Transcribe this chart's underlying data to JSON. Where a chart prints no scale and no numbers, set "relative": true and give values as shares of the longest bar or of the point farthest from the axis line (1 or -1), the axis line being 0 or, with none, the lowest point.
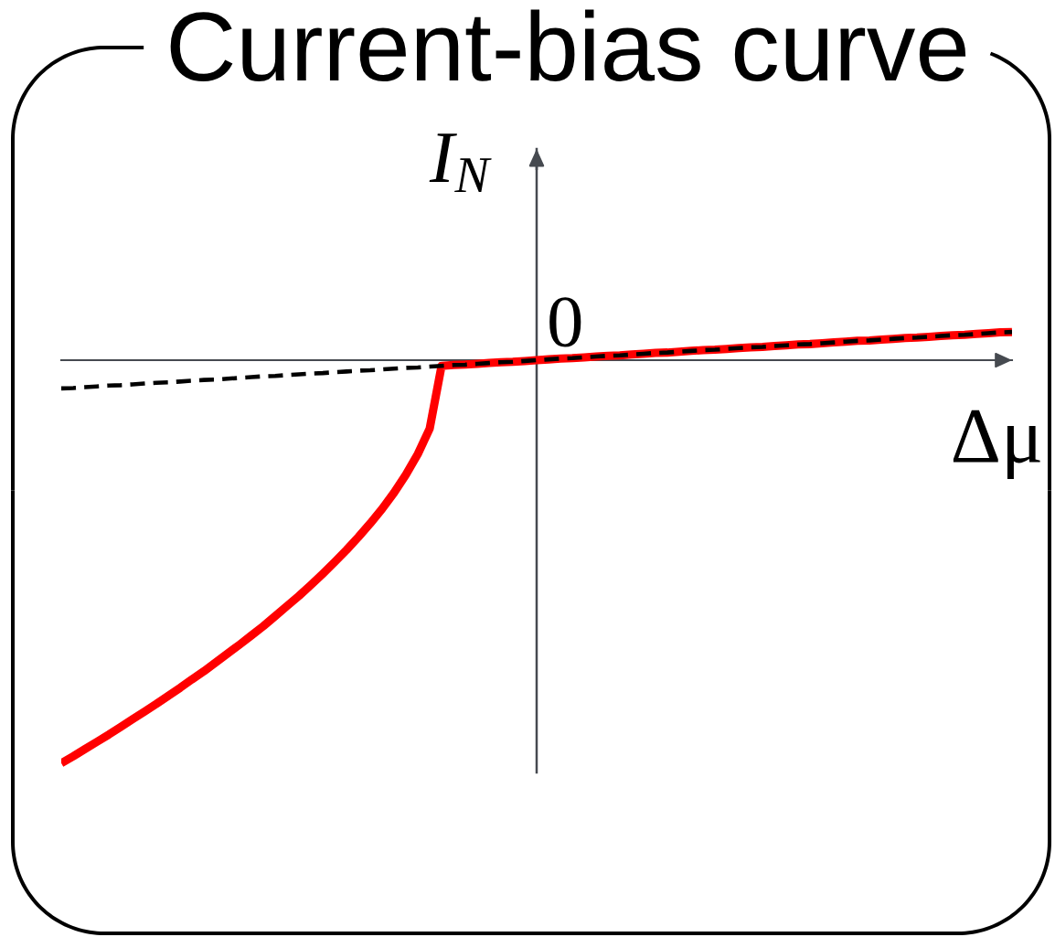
{
  "chart_data": {
    "type": "line",
    "title": "Current-bias curve",
    "xlabel": "Δμ",
    "ylabel": "I$_{N}$",
    "relative": true,
    "annotations": [
      "0"
    ],
    "categories": [
      null,
      null,
      null,
      null,
      null,
      null,
      null,
      null,
      null,
      null,
      null,
      null,
      null,
      null,
      null,
      null,
      null,
      null,
      null,
      null,
      null,
      null,
      null,
      null,
      null,
      null,
      null,
      null,
      null,
      null,
      null,
      null,
      null,
      null,
      null,
      null,
      null,
      null,
      null,
      null,
      null,
      null,
      null,
      null,
      null,
      null,
      null,
      null,
      null,
      null,
      null,
      null,
      null,
      null,
      null,
      null,
      null,
      null,
      null,
      null,
      null,
      null,
      null,
      null,
      null,
      null,
      null,
      null,
      null,
      null,
      null,
      null,
      null,
      null,
      null,
      null,
      null,
      null,
      null,
      null,
      null
    ],
    "series": [
      {
        "color": "#ff0000",
        "line_style": "solid",
        "values": [
          -1,
          -0.983,
          -0.965,
          -0.947,
          -0.929,
          -0.91,
          -0.891,
          -0.872,
          -0.853,
          -0.833,
          -0.813,
          -0.792,
          -0.772,
          -0.75,
          -0.728,
          -0.706,
          -0.683,
          -0.66,
          -0.635,
          -0.61,
          -0.585,
          -0.558,
          -0.53,
          -0.501,
          -0.471,
          -0.439,
          -0.405,
          -0.369,
          -0.329,
          -0.284,
          -0.233,
          -0.17,
          -0.014,
          -0.012,
          -0.011,
          -0.009,
          -0.007,
          -0.005,
          -0.004,
          -0.002,
          0,
          0.002,
          0.004,
          0.005,
          0.007,
          0.009,
          0.011,
          0.012,
          0.014,
          0.016,
          0.018,
          0.019,
          0.021,
          0.023,
          0.025,
          0.026,
          0.028,
          0.03,
          0.032,
          0.033,
          0.035,
          0.037,
          0.039,
          0.04,
          0.042,
          0.044,
          0.046,
          0.048,
          0.049,
          0.051,
          0.053,
          0.055,
          0.056,
          0.058,
          0.06,
          0.062,
          0.063,
          0.065,
          0.067,
          0.069,
          0.07
        ]
      },
      {
        "color": "#000000",
        "line_style": "dashed",
        "values": [
          -0.07,
          -0.069,
          -0.067,
          -0.065,
          -0.063,
          -0.062,
          -0.06,
          -0.058,
          -0.056,
          -0.055,
          -0.053,
          -0.051,
          -0.049,
          -0.048,
          -0.046,
          -0.044,
          -0.042,
          -0.04,
          -0.039,
          -0.037,
          -0.035,
          -0.033,
          -0.032,
          -0.03,
          -0.028,
          -0.026,
          -0.025,
          -0.023,
          -0.021,
          -0.019,
          -0.018,
          -0.016,
          -0.014,
          -0.012,
          -0.011,
          -0.009,
          -0.007,
          -0.005,
          -0.004,
          -0.002,
          0,
          0.002,
          0.004,
          0.005,
          0.007,
          0.009,
          0.011,
          0.012,
          0.014,
          0.016,
          0.018,
          0.019,
          0.021,
          0.023,
          0.025,
          0.026,
          0.028,
          0.03,
          0.032,
          0.033,
          0.035,
          0.037,
          0.039,
          0.04,
          0.042,
          0.044,
          0.046,
          0.048,
          0.049,
          0.051,
          0.053,
          0.055,
          0.056,
          0.058,
          0.06,
          0.062,
          0.063,
          0.065,
          0.067,
          0.069,
          0.07
        ]
      }
    ]
  }
}
